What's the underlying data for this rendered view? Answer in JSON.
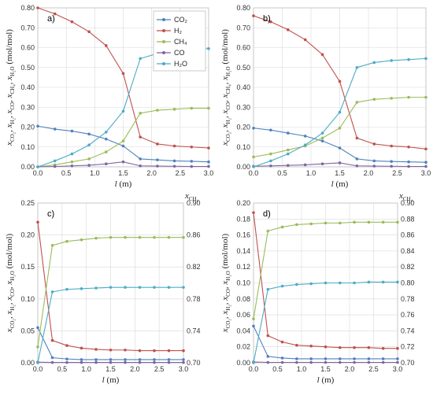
{
  "colors": {
    "CO2": "#4f81bd",
    "H2": "#c0504d",
    "CH4": "#9bbb59",
    "CO": "#8064a2",
    "H2O": "#4bacc6"
  },
  "legend": {
    "placement": "top-right of panel a",
    "entries": [
      "CO₂",
      "H₂",
      "CH₄",
      "CO",
      "H₂O"
    ]
  },
  "chart_data": [
    {
      "panel": "a)",
      "type": "line",
      "xlabel": "l (m)",
      "ylabel": "xCO2, xH2, xCO, xCH4, xH2O (mol/mol)",
      "xlim": [
        0,
        3
      ],
      "ylim": [
        0,
        0.8
      ],
      "xticks": [
        "0.0",
        "0.5",
        "1.0",
        "1.5",
        "2.0",
        "2.5",
        "3.0"
      ],
      "yticks": [
        "0.00",
        "0.10",
        "0.20",
        "0.30",
        "0.40",
        "0.50",
        "0.60",
        "0.70",
        "0.80"
      ],
      "grid": true,
      "x": [
        0,
        0.3,
        0.6,
        0.9,
        1.2,
        1.5,
        1.8,
        2.1,
        2.4,
        2.7,
        3.0
      ],
      "series": [
        {
          "key": "CO2",
          "name": "CO₂",
          "axis": "left",
          "values": [
            0.205,
            0.19,
            0.18,
            0.165,
            0.14,
            0.105,
            0.04,
            0.035,
            0.03,
            0.028,
            0.025
          ]
        },
        {
          "key": "H2",
          "name": "H₂",
          "axis": "left",
          "values": [
            0.8,
            0.77,
            0.73,
            0.68,
            0.61,
            0.47,
            0.15,
            0.115,
            0.105,
            0.1,
            0.095
          ]
        },
        {
          "key": "CH4",
          "name": "CH₄",
          "axis": "left",
          "values": [
            0.0,
            0.01,
            0.025,
            0.04,
            0.075,
            0.13,
            0.27,
            0.285,
            0.29,
            0.295,
            0.295
          ]
        },
        {
          "key": "CO",
          "name": "CO",
          "axis": "left",
          "values": [
            0.0,
            0.002,
            0.005,
            0.008,
            0.015,
            0.025,
            0.005,
            0.004,
            0.003,
            0.002,
            0.002
          ]
        },
        {
          "key": "H2O",
          "name": "H₂O",
          "axis": "left",
          "values": [
            0.0,
            0.03,
            0.065,
            0.11,
            0.175,
            0.28,
            0.545,
            0.57,
            0.585,
            0.59,
            0.595
          ]
        }
      ]
    },
    {
      "panel": "b)",
      "type": "line",
      "xlabel": "l (m)",
      "ylabel": "xCO2, xH2, xCO, xCH4, xH2O (mol/mol)",
      "xlim": [
        0,
        3
      ],
      "ylim": [
        0,
        0.8
      ],
      "xticks": [
        "0.0",
        "0.5",
        "1.0",
        "1.5",
        "2.0",
        "2.5",
        "3.0"
      ],
      "yticks": [
        "0.00",
        "0.10",
        "0.20",
        "0.30",
        "0.40",
        "0.50",
        "0.60",
        "0.70",
        "0.80"
      ],
      "grid": true,
      "x": [
        0,
        0.3,
        0.6,
        0.9,
        1.2,
        1.5,
        1.8,
        2.1,
        2.4,
        2.7,
        3.0
      ],
      "series": [
        {
          "key": "CO2",
          "name": "CO₂",
          "axis": "left",
          "values": [
            0.195,
            0.185,
            0.17,
            0.155,
            0.13,
            0.095,
            0.04,
            0.03,
            0.027,
            0.025,
            0.023
          ]
        },
        {
          "key": "H2",
          "name": "H₂",
          "axis": "left",
          "values": [
            0.76,
            0.73,
            0.69,
            0.64,
            0.565,
            0.43,
            0.145,
            0.115,
            0.105,
            0.1,
            0.09
          ]
        },
        {
          "key": "CH4",
          "name": "CH₄",
          "axis": "left",
          "values": [
            0.05,
            0.065,
            0.085,
            0.105,
            0.145,
            0.195,
            0.325,
            0.34,
            0.345,
            0.35,
            0.35
          ]
        },
        {
          "key": "CO",
          "name": "CO",
          "axis": "left",
          "values": [
            0.003,
            0.005,
            0.007,
            0.01,
            0.015,
            0.02,
            0.005,
            0.004,
            0.003,
            0.002,
            0.002
          ]
        },
        {
          "key": "H2O",
          "name": "H₂O",
          "axis": "left",
          "values": [
            0.0,
            0.03,
            0.065,
            0.11,
            0.17,
            0.275,
            0.5,
            0.525,
            0.535,
            0.54,
            0.545
          ]
        }
      ]
    },
    {
      "panel": "c)",
      "type": "line",
      "xlabel": "l (m)",
      "ylabel": "xCO2, xH2, xCO, xH2O (mol/mol)",
      "y2label": "xCH4",
      "xlim": [
        0,
        3
      ],
      "ylim": [
        0,
        0.25
      ],
      "y2lim": [
        0.7,
        0.9
      ],
      "xticks": [
        "0.0",
        "0.5",
        "1.0",
        "1.5",
        "2.0",
        "2.5",
        "3.0"
      ],
      "yticks": [
        "0.00",
        "0.05",
        "0.10",
        "0.15",
        "0.20",
        "0.25"
      ],
      "y2ticks": [
        "0.70",
        "0.74",
        "0.78",
        "0.82",
        "0.86",
        "0.90"
      ],
      "grid": true,
      "x": [
        0,
        0.3,
        0.6,
        0.9,
        1.2,
        1.5,
        1.8,
        2.1,
        2.4,
        2.7,
        3.0
      ],
      "series": [
        {
          "key": "CO2",
          "name": "CO₂",
          "axis": "left",
          "values": [
            0.055,
            0.008,
            0.006,
            0.005,
            0.005,
            0.005,
            0.005,
            0.005,
            0.005,
            0.005,
            0.005
          ]
        },
        {
          "key": "H2",
          "name": "H₂",
          "axis": "left",
          "values": [
            0.22,
            0.035,
            0.027,
            0.023,
            0.021,
            0.02,
            0.02,
            0.019,
            0.019,
            0.019,
            0.019
          ]
        },
        {
          "key": "CH4",
          "name": "CH₄",
          "axis": "right",
          "values": [
            0.72,
            0.847,
            0.852,
            0.854,
            0.856,
            0.857,
            0.857,
            0.857,
            0.857,
            0.857,
            0.857
          ]
        },
        {
          "key": "CO",
          "name": "CO",
          "axis": "left",
          "values": [
            0.001,
            0.0005,
            0.0005,
            0.0005,
            0.0005,
            0.0005,
            0.0005,
            0.0005,
            0.0005,
            0.0005,
            0.0005
          ]
        },
        {
          "key": "H2O",
          "name": "H₂O",
          "axis": "left",
          "values": [
            0.0,
            0.111,
            0.115,
            0.116,
            0.117,
            0.118,
            0.118,
            0.118,
            0.118,
            0.118,
            0.118
          ]
        }
      ]
    },
    {
      "panel": "d)",
      "type": "line",
      "xlabel": "l (m)",
      "ylabel": "xCO2, xH2, xCO, xH2O (mol/mol)",
      "y2label": "xCH4",
      "xlim": [
        0,
        3
      ],
      "ylim": [
        0,
        0.2
      ],
      "y2lim": [
        0.7,
        0.9
      ],
      "xticks": [
        "0.0",
        "0.5",
        "1.0",
        "1.5",
        "2.0",
        "2.5",
        "3.0"
      ],
      "yticks": [
        "0.00",
        "0.02",
        "0.04",
        "0.06",
        "0.08",
        "0.10",
        "0.12",
        "0.14",
        "0.16",
        "0.18",
        "0.20"
      ],
      "y2ticks": [
        "0.70",
        "0.72",
        "0.74",
        "0.76",
        "0.78",
        "0.80",
        "0.82",
        "0.84",
        "0.86",
        "0.88",
        "0.90"
      ],
      "grid": true,
      "x": [
        0,
        0.3,
        0.6,
        0.9,
        1.2,
        1.5,
        1.8,
        2.1,
        2.4,
        2.7,
        3.0
      ],
      "series": [
        {
          "key": "CO2",
          "name": "CO₂",
          "axis": "left",
          "values": [
            0.046,
            0.008,
            0.006,
            0.005,
            0.005,
            0.005,
            0.005,
            0.005,
            0.005,
            0.005,
            0.005
          ]
        },
        {
          "key": "H2",
          "name": "H₂",
          "axis": "left",
          "values": [
            0.188,
            0.034,
            0.026,
            0.022,
            0.021,
            0.02,
            0.019,
            0.019,
            0.019,
            0.018,
            0.018
          ]
        },
        {
          "key": "CH4",
          "name": "CH₄",
          "axis": "right",
          "values": [
            0.755,
            0.865,
            0.87,
            0.873,
            0.874,
            0.875,
            0.875,
            0.876,
            0.876,
            0.876,
            0.876
          ]
        },
        {
          "key": "CO",
          "name": "CO",
          "axis": "left",
          "values": [
            0.001,
            0.0005,
            0.0005,
            0.0005,
            0.0005,
            0.0005,
            0.0005,
            0.0005,
            0.0005,
            0.0005,
            0.0005
          ]
        },
        {
          "key": "H2O",
          "name": "H₂O",
          "axis": "left",
          "values": [
            0.0,
            0.092,
            0.096,
            0.098,
            0.099,
            0.1,
            0.1,
            0.1,
            0.101,
            0.101,
            0.101
          ]
        }
      ]
    }
  ]
}
